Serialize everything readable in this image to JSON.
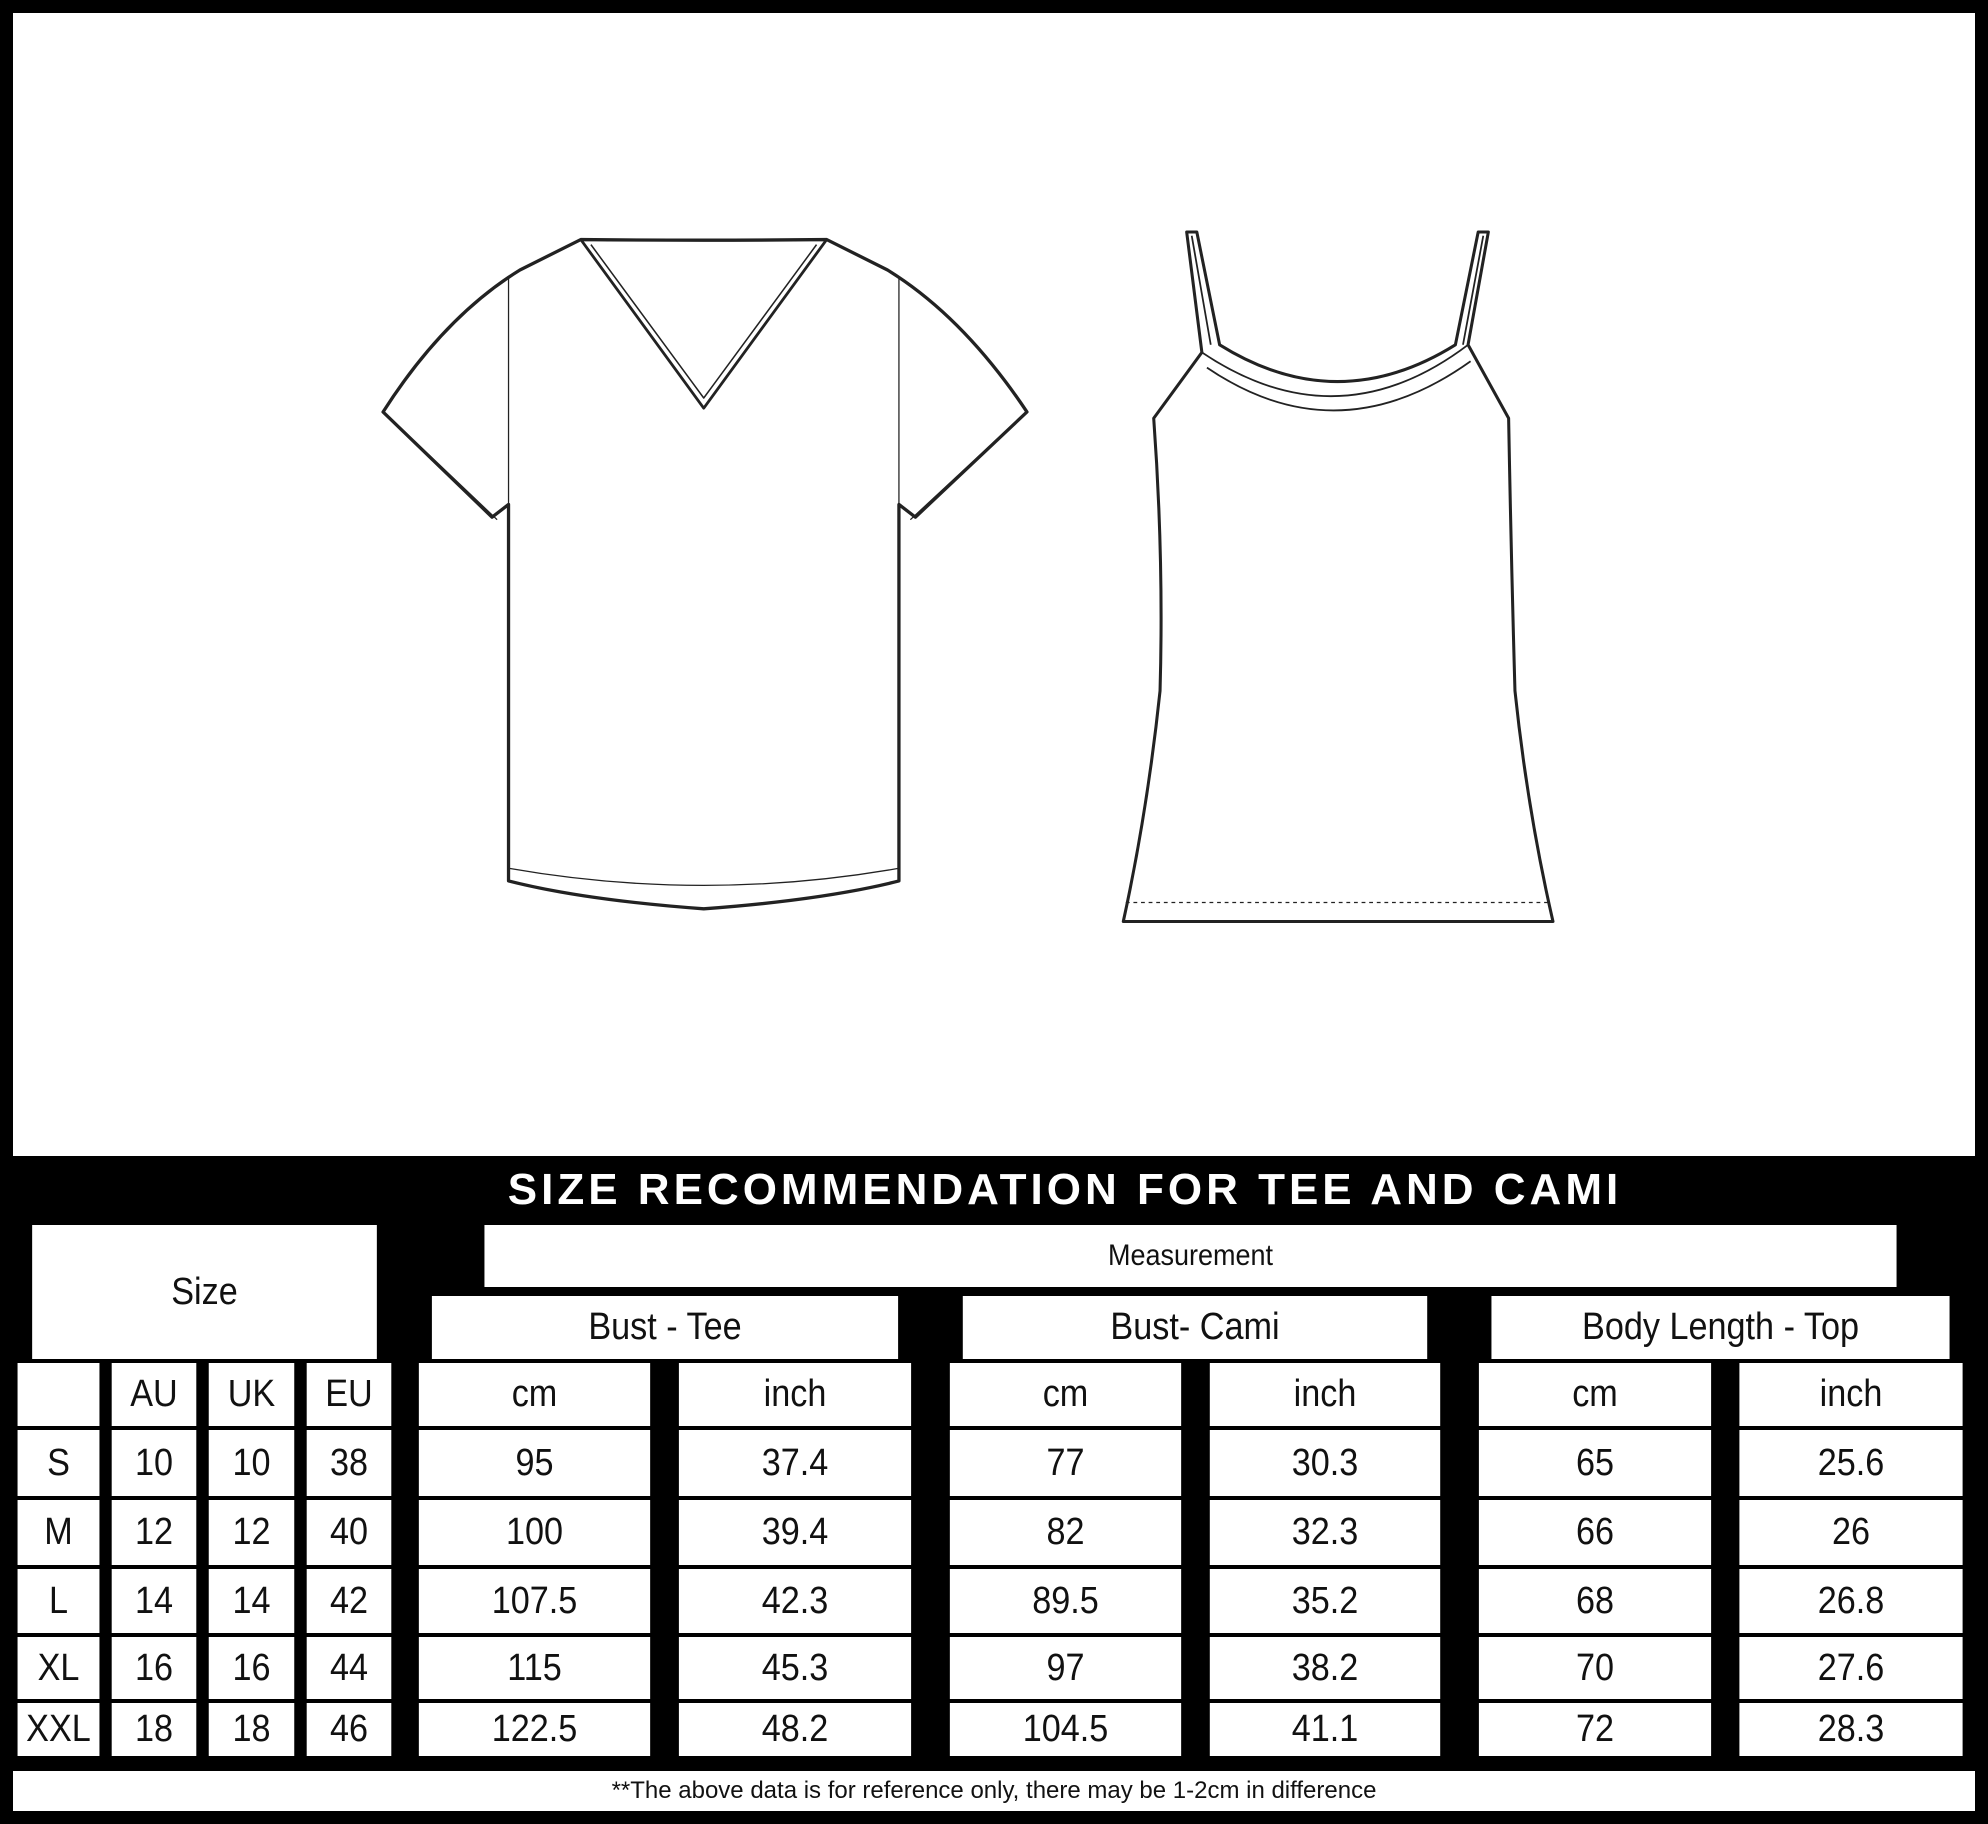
{
  "title": "SIZE RECOMMENDATION FOR TEE AND CAMI",
  "illustrations": [
    "v-neck-tee-icon",
    "cami-icon"
  ],
  "table": {
    "size_header": "Size",
    "measurement_header": "Measurement",
    "groups": [
      "Bust - Tee",
      "Bust- Cami",
      "Body Length - Top"
    ],
    "size_subheaders": [
      "",
      "AU",
      "UK",
      "EU"
    ],
    "unit_headers": [
      "cm",
      "inch",
      "cm",
      "inch",
      "cm",
      "inch"
    ],
    "rows": [
      [
        "S",
        "10",
        "10",
        "38",
        "95",
        "37.4",
        "77",
        "30.3",
        "65",
        "25.6"
      ],
      [
        "M",
        "12",
        "12",
        "40",
        "100",
        "39.4",
        "82",
        "32.3",
        "66",
        "26"
      ],
      [
        "L",
        "14",
        "14",
        "42",
        "107.5",
        "42.3",
        "89.5",
        "35.2",
        "68",
        "26.8"
      ],
      [
        "XL",
        "16",
        "16",
        "44",
        "115",
        "45.3",
        "97",
        "38.2",
        "70",
        "27.6"
      ],
      [
        "XXL",
        "18",
        "18",
        "46",
        "122.5",
        "48.2",
        "104.5",
        "41.1",
        "72",
        "28.3"
      ]
    ]
  },
  "footer_note": "**The above data is for reference only, there may be 1-2cm in difference"
}
